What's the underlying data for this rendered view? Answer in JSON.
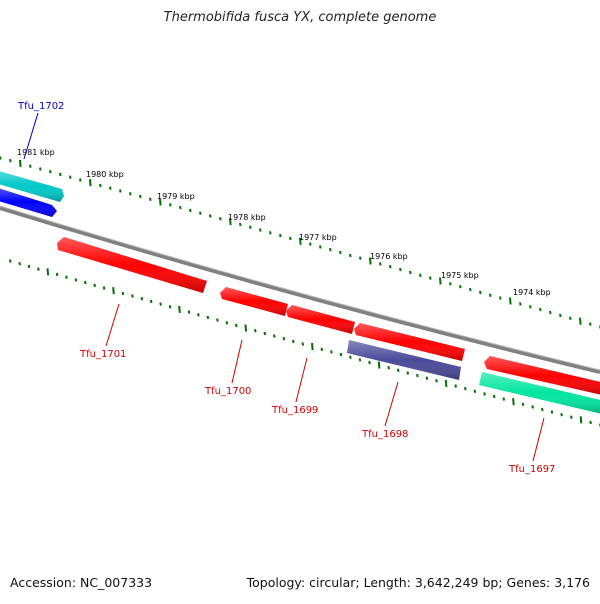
{
  "title": "Thermobifida fusca YX, complete genome",
  "footer": {
    "accession": "Accession: NC_007333",
    "summary": "Topology: circular; Length: 3,642,249 bp; Genes: 3,176"
  },
  "colors": {
    "backbone": "#808080",
    "tick": "#007000",
    "label_forward": "#0000c0",
    "label_reverse": "#cc0000",
    "scale_text": "#000000"
  },
  "scale_labels": [
    "1981 kbp",
    "1980 kbp",
    "1979 kbp",
    "1978 kbp",
    "1977 kbp",
    "1976 kbp",
    "1975 kbp",
    "1974 kbp"
  ],
  "genes": [
    {
      "id": "Tfu_1702",
      "strand": "forward",
      "color": "#00c8c8"
    },
    {
      "id": "Tfu_1702b",
      "strand": "forward",
      "color": "#0000ff"
    },
    {
      "id": "Tfu_1701",
      "strand": "reverse",
      "color": "#ff0000"
    },
    {
      "id": "Tfu_1700",
      "strand": "reverse",
      "color": "#ff0000"
    },
    {
      "id": "Tfu_1699",
      "strand": "reverse",
      "color": "#ff0000"
    },
    {
      "id": "Tfu_1698a",
      "strand": "reverse",
      "color": "#ff0000"
    },
    {
      "id": "Tfu_1698",
      "strand": "reverse",
      "color": "#4a4a9a"
    },
    {
      "id": "Tfu_1697a",
      "strand": "reverse",
      "color": "#ff0000"
    },
    {
      "id": "Tfu_1697",
      "strand": "reverse",
      "color": "#00e6a0"
    }
  ],
  "labels": [
    "Tfu_1702",
    "Tfu_1701",
    "Tfu_1700",
    "Tfu_1699",
    "Tfu_1698",
    "Tfu_1697"
  ]
}
